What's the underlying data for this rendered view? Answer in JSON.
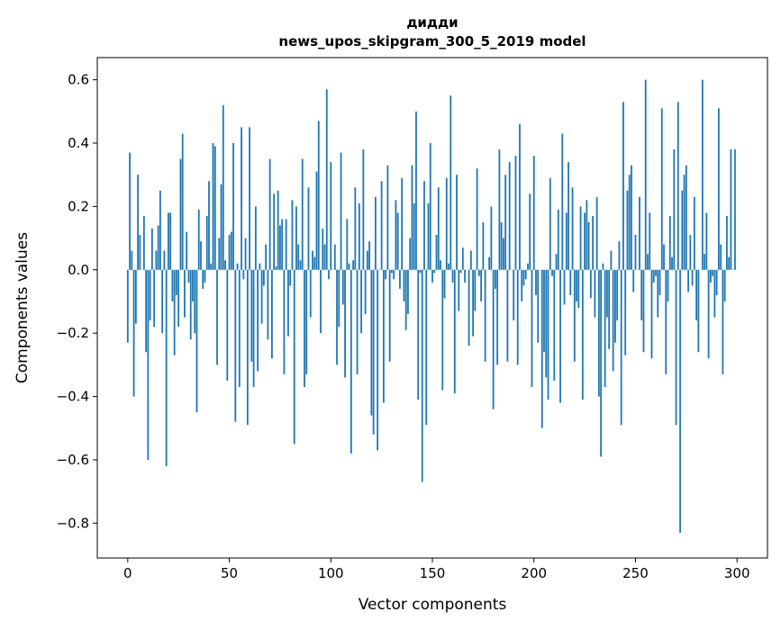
{
  "chart_data": {
    "type": "bar",
    "title": "дидди",
    "subtitle": "news_upos_skipgram_300_5_2019 model",
    "xlabel": "Vector components",
    "ylabel": "Components values",
    "xlim": [
      -15,
      315
    ],
    "ylim": [
      -0.91,
      0.67
    ],
    "xticks": [
      0,
      50,
      100,
      150,
      200,
      250,
      300
    ],
    "xtick_labels": [
      "0",
      "50",
      "100",
      "150",
      "200",
      "250",
      "300"
    ],
    "yticks": [
      -0.8,
      -0.6,
      -0.4,
      -0.2,
      0.0,
      0.2,
      0.4,
      0.6
    ],
    "ytick_labels": [
      "−0.8",
      "−0.6",
      "−0.4",
      "−0.2",
      "0.0",
      "0.2",
      "0.4",
      "0.6"
    ],
    "grid": false,
    "color": "#1f77b4",
    "values": [
      -0.23,
      0.37,
      0.06,
      -0.4,
      -0.17,
      0.3,
      0.11,
      0.0,
      0.17,
      -0.26,
      -0.6,
      -0.16,
      0.13,
      -0.18,
      0.06,
      0.14,
      0.25,
      -0.2,
      0.06,
      -0.62,
      0.18,
      0.18,
      -0.1,
      -0.27,
      -0.08,
      -0.18,
      0.35,
      0.43,
      -0.15,
      0.12,
      -0.04,
      -0.22,
      -0.1,
      -0.2,
      -0.45,
      0.19,
      0.09,
      -0.06,
      -0.04,
      0.17,
      0.28,
      0.02,
      0.4,
      0.39,
      -0.3,
      0.1,
      0.27,
      0.52,
      0.03,
      -0.35,
      0.11,
      0.12,
      0.4,
      -0.48,
      0.02,
      -0.37,
      0.45,
      -0.03,
      0.1,
      -0.49,
      0.45,
      -0.29,
      -0.37,
      0.2,
      -0.32,
      0.02,
      -0.17,
      -0.05,
      0.08,
      -0.22,
      0.35,
      -0.28,
      0.24,
      0.01,
      0.25,
      0.14,
      0.16,
      -0.33,
      0.16,
      -0.21,
      -0.05,
      0.22,
      -0.55,
      0.2,
      0.08,
      0.03,
      0.35,
      -0.37,
      -0.33,
      0.26,
      -0.15,
      0.06,
      0.04,
      0.31,
      0.47,
      -0.2,
      0.13,
      0.08,
      0.57,
      -0.03,
      0.34,
      0.0,
      0.08,
      -0.3,
      -0.18,
      0.37,
      -0.11,
      -0.34,
      0.16,
      0.02,
      -0.58,
      0.03,
      0.26,
      -0.33,
      0.21,
      -0.2,
      0.38,
      -0.14,
      0.06,
      0.09,
      -0.46,
      -0.52,
      0.23,
      -0.57,
      0.0,
      0.28,
      -0.42,
      -0.03,
      0.33,
      -0.29,
      -0.01,
      -0.03,
      0.22,
      0.18,
      -0.06,
      0.29,
      -0.1,
      -0.19,
      -0.14,
      0.1,
      0.33,
      0.21,
      0.5,
      -0.41,
      -0.01,
      -0.67,
      0.28,
      -0.49,
      0.21,
      0.4,
      -0.04,
      -0.01,
      0.11,
      0.26,
      0.03,
      -0.38,
      -0.09,
      0.29,
      0.02,
      0.55,
      -0.04,
      -0.39,
      0.3,
      -0.13,
      -0.01,
      0.07,
      -0.04,
      0.0,
      -0.24,
      0.06,
      -0.21,
      -0.13,
      0.32,
      -0.02,
      -0.1,
      0.15,
      -0.29,
      0.0,
      0.04,
      0.2,
      -0.44,
      -0.06,
      -0.3,
      0.38,
      0.15,
      0.1,
      0.3,
      -0.29,
      0.34,
      0.0,
      -0.16,
      0.36,
      -0.3,
      0.46,
      -0.1,
      -0.05,
      -0.03,
      0.02,
      0.24,
      -0.37,
      0.36,
      -0.08,
      -0.23,
      0.0,
      -0.5,
      -0.26,
      -0.34,
      -0.41,
      0.29,
      -0.02,
      -0.35,
      0.05,
      0.19,
      -0.42,
      0.43,
      -0.11,
      0.18,
      0.34,
      -0.08,
      0.26,
      -0.29,
      -0.1,
      -0.12,
      0.2,
      -0.41,
      0.18,
      0.22,
      0.15,
      -0.09,
      0.17,
      -0.15,
      0.23,
      -0.4,
      -0.59,
      0.02,
      -0.37,
      -0.15,
      -0.25,
      0.06,
      -0.32,
      -0.23,
      -0.16,
      0.09,
      -0.49,
      0.53,
      -0.27,
      0.25,
      0.3,
      0.33,
      -0.07,
      0.11,
      0.0,
      0.23,
      -0.16,
      -0.26,
      0.6,
      0.05,
      0.18,
      -0.28,
      -0.04,
      -0.02,
      -0.15,
      -0.08,
      0.51,
      0.08,
      -0.33,
      -0.1,
      0.17,
      0.04,
      0.38,
      -0.49,
      0.53,
      -0.83,
      0.25,
      0.3,
      0.33,
      -0.07,
      0.11,
      -0.05,
      0.23,
      -0.16,
      -0.26,
      0.0,
      0.6,
      0.05,
      0.18,
      -0.28,
      -0.04,
      -0.02,
      -0.15,
      -0.08,
      0.51,
      0.08,
      -0.33,
      -0.1,
      0.17,
      0.04,
      0.38,
      0.0,
      0.38
    ]
  }
}
